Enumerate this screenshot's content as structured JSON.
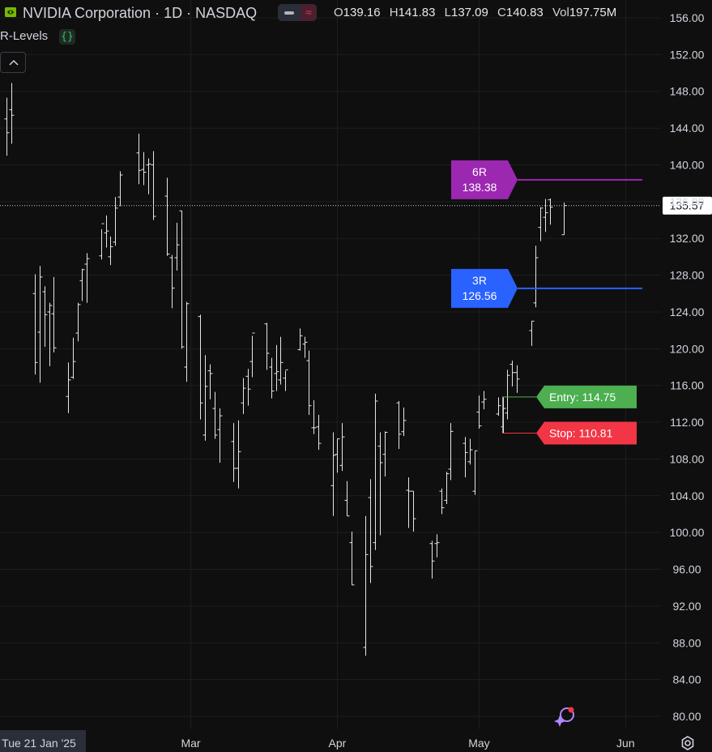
{
  "header": {
    "title": "NVIDIA Corporation · 1D · NASDAQ",
    "ohlc": [
      {
        "key": "O",
        "value": "139.16"
      },
      {
        "key": "H",
        "value": "141.83"
      },
      {
        "key": "L",
        "value": "137.09"
      },
      {
        "key": "C",
        "value": "140.83"
      },
      {
        "key": "Vol",
        "value": "197.75M"
      }
    ],
    "indicator_name": "R-Levels",
    "indicator_icon": "code-braces-icon"
  },
  "colors": {
    "background": "#0f0f0f",
    "grid": "#1e1e1e",
    "bar": "#e6e6e6",
    "six_r": "#9c27b0",
    "three_r": "#2962ff",
    "entry": "#4caf50",
    "stop": "#f23645",
    "text": "#d1d4dc"
  },
  "chart_data": {
    "type": "ohlc",
    "title": "NVIDIA Corporation · 1D · NASDAQ",
    "ylim": [
      80,
      156
    ],
    "y_ticks": [
      "156.00",
      "152.00",
      "148.00",
      "144.00",
      "140.00",
      "136.00",
      "132.00",
      "128.00",
      "124.00",
      "120.00",
      "116.00",
      "112.00",
      "108.00",
      "104.00",
      "100.00",
      "96.00",
      "92.00",
      "88.00",
      "84.00",
      "80.00"
    ],
    "x_ticks": [
      {
        "label": "Tue 21 Jan '25",
        "date": "2025-01-21",
        "highlight": true
      },
      {
        "label": "Mar",
        "date": "2025-03-01"
      },
      {
        "label": "Apr",
        "date": "2025-04-01"
      },
      {
        "label": "May",
        "date": "2025-05-01"
      },
      {
        "label": "Jun",
        "date": "2025-06-01"
      }
    ],
    "xlim": [
      "2025-01-21",
      "2025-06-03"
    ],
    "last_price": "135.57",
    "levels": [
      {
        "name": "6R",
        "value": "138.38",
        "color": "#9c27b0"
      },
      {
        "name": "3R",
        "value": "126.56",
        "color": "#2962ff"
      }
    ],
    "entry": {
      "label": "Entry: 114.75",
      "value": 114.75,
      "color": "#4caf50"
    },
    "stop": {
      "label": "Stop: 110.81",
      "value": 110.81,
      "color": "#f23645"
    },
    "bars": [
      {
        "d": "2025-01-21",
        "o": 145.0,
        "h": 147.3,
        "l": 141.0,
        "c": 143.5
      },
      {
        "d": "2025-01-22",
        "o": 146.0,
        "h": 148.9,
        "l": 142.3,
        "c": 145.4
      },
      {
        "d": "2025-01-27",
        "o": 126.0,
        "h": 128.1,
        "l": 117.2,
        "c": 118.5
      },
      {
        "d": "2025-01-28",
        "o": 121.8,
        "h": 129.0,
        "l": 116.3,
        "c": 127.8
      },
      {
        "d": "2025-01-29",
        "o": 126.2,
        "h": 126.8,
        "l": 120.2,
        "c": 123.7
      },
      {
        "d": "2025-01-30",
        "o": 124.0,
        "h": 125.0,
        "l": 118.1,
        "c": 124.7
      },
      {
        "d": "2025-01-31",
        "o": 123.8,
        "h": 127.8,
        "l": 119.6,
        "c": 120.1
      },
      {
        "d": "2025-02-03",
        "o": 114.8,
        "h": 118.5,
        "l": 113.0,
        "c": 116.6
      },
      {
        "d": "2025-02-04",
        "o": 116.9,
        "h": 121.2,
        "l": 116.7,
        "c": 118.6
      },
      {
        "d": "2025-02-05",
        "o": 121.7,
        "h": 125.0,
        "l": 120.8,
        "c": 124.8
      },
      {
        "d": "2025-02-06",
        "o": 127.4,
        "h": 128.7,
        "l": 125.2,
        "c": 128.6
      },
      {
        "d": "2025-02-07",
        "o": 129.2,
        "h": 130.4,
        "l": 125.0,
        "c": 129.8
      },
      {
        "d": "2025-02-10",
        "o": 130.1,
        "h": 133.0,
        "l": 129.7,
        "c": 133.6
      },
      {
        "d": "2025-02-11",
        "o": 132.6,
        "h": 134.5,
        "l": 131.0,
        "c": 132.8
      },
      {
        "d": "2025-02-12",
        "o": 130.0,
        "h": 132.2,
        "l": 129.1,
        "c": 131.1
      },
      {
        "d": "2025-02-13",
        "o": 131.6,
        "h": 136.5,
        "l": 131.2,
        "c": 135.3
      },
      {
        "d": "2025-02-14",
        "o": 136.5,
        "h": 139.3,
        "l": 135.5,
        "c": 138.9
      },
      {
        "d": "2025-02-18",
        "o": 141.3,
        "h": 143.4,
        "l": 137.9,
        "c": 139.4
      },
      {
        "d": "2025-02-19",
        "o": 139.5,
        "h": 141.4,
        "l": 137.8,
        "c": 139.2
      },
      {
        "d": "2025-02-20",
        "o": 140.0,
        "h": 140.7,
        "l": 136.8,
        "c": 140.1
      },
      {
        "d": "2025-02-21",
        "o": 140.0,
        "h": 141.5,
        "l": 134.0,
        "c": 134.4
      },
      {
        "d": "2025-02-24",
        "o": 136.6,
        "h": 138.6,
        "l": 130.1,
        "c": 130.3
      },
      {
        "d": "2025-02-25",
        "o": 129.9,
        "h": 130.2,
        "l": 124.4,
        "c": 126.6
      },
      {
        "d": "2025-02-26",
        "o": 129.9,
        "h": 133.7,
        "l": 128.5,
        "c": 131.3
      },
      {
        "d": "2025-02-27",
        "o": 135.0,
        "h": 135.0,
        "l": 120.0,
        "c": 120.2
      },
      {
        "d": "2025-02-28",
        "o": 118.0,
        "h": 125.1,
        "l": 116.4,
        "c": 124.9
      },
      {
        "d": "2025-03-03",
        "o": 123.5,
        "h": 123.7,
        "l": 112.3,
        "c": 114.1
      },
      {
        "d": "2025-03-04",
        "o": 110.6,
        "h": 119.3,
        "l": 110.0,
        "c": 115.9
      },
      {
        "d": "2025-03-05",
        "o": 117.6,
        "h": 118.3,
        "l": 114.5,
        "c": 117.3
      },
      {
        "d": "2025-03-06",
        "o": 113.5,
        "h": 115.3,
        "l": 110.2,
        "c": 110.6
      },
      {
        "d": "2025-03-07",
        "o": 111.2,
        "h": 113.5,
        "l": 107.6,
        "c": 112.7
      },
      {
        "d": "2025-03-10",
        "o": 109.9,
        "h": 111.9,
        "l": 105.5,
        "c": 106.98
      },
      {
        "d": "2025-03-11",
        "o": 106.99,
        "h": 112.2,
        "l": 104.8,
        "c": 108.8
      },
      {
        "d": "2025-03-12",
        "o": 114.1,
        "h": 116.8,
        "l": 112.9,
        "c": 115.7
      },
      {
        "d": "2025-03-13",
        "o": 117.0,
        "h": 117.8,
        "l": 113.8,
        "c": 115.6
      },
      {
        "d": "2025-03-14",
        "o": 118.6,
        "h": 121.4,
        "l": 116.9,
        "c": 121.7
      },
      {
        "d": "2025-03-17",
        "o": 122.7,
        "h": 122.8,
        "l": 117.7,
        "c": 119.5
      },
      {
        "d": "2025-03-18",
        "o": 118.0,
        "h": 119.0,
        "l": 114.6,
        "c": 115.4
      },
      {
        "d": "2025-03-19",
        "o": 117.3,
        "h": 120.4,
        "l": 115.4,
        "c": 117.5
      },
      {
        "d": "2025-03-20",
        "o": 116.6,
        "h": 121.3,
        "l": 116.1,
        "c": 118.5
      },
      {
        "d": "2025-03-21",
        "o": 116.8,
        "h": 117.6,
        "l": 115.4,
        "c": 117.7
      },
      {
        "d": "2025-03-24",
        "o": 119.9,
        "h": 122.2,
        "l": 119.8,
        "c": 121.4
      },
      {
        "d": "2025-03-25",
        "o": 120.5,
        "h": 121.3,
        "l": 119.0,
        "c": 120.7
      },
      {
        "d": "2025-03-26",
        "o": 118.7,
        "h": 119.8,
        "l": 112.8,
        "c": 113.8
      },
      {
        "d": "2025-03-27",
        "o": 111.4,
        "h": 114.4,
        "l": 110.7,
        "c": 111.4
      },
      {
        "d": "2025-03-28",
        "o": 111.5,
        "h": 112.8,
        "l": 109.0,
        "c": 109.7
      },
      {
        "d": "2025-03-31",
        "o": 105.1,
        "h": 110.9,
        "l": 101.8,
        "c": 108.4
      },
      {
        "d": "2025-04-01",
        "o": 108.5,
        "h": 110.2,
        "l": 106.5,
        "c": 110.2
      },
      {
        "d": "2025-04-02",
        "o": 107.3,
        "h": 111.9,
        "l": 106.7,
        "c": 110.4
      },
      {
        "d": "2025-04-03",
        "o": 103.5,
        "h": 105.6,
        "l": 101.8,
        "c": 101.8
      },
      {
        "d": "2025-04-04",
        "o": 98.9,
        "h": 100.1,
        "l": 94.3,
        "c": 94.3
      },
      {
        "d": "2025-04-07",
        "o": 87.5,
        "h": 101.8,
        "l": 86.6,
        "c": 97.6
      },
      {
        "d": "2025-04-08",
        "o": 103.8,
        "h": 105.8,
        "l": 94.5,
        "c": 96.3
      },
      {
        "d": "2025-04-09",
        "o": 98.9,
        "h": 115.1,
        "l": 98.1,
        "c": 114.3
      },
      {
        "d": "2025-04-10",
        "o": 109.4,
        "h": 110.9,
        "l": 99.7,
        "c": 107.6
      },
      {
        "d": "2025-04-11",
        "o": 108.5,
        "h": 111.0,
        "l": 106.1,
        "c": 110.9
      },
      {
        "d": "2025-04-14",
        "o": 114.1,
        "h": 114.3,
        "l": 109.1,
        "c": 110.7
      },
      {
        "d": "2025-04-15",
        "o": 110.97,
        "h": 113.6,
        "l": 110.5,
        "c": 112.2
      },
      {
        "d": "2025-04-16",
        "o": 104.6,
        "h": 106.0,
        "l": 100.5,
        "c": 104.5
      },
      {
        "d": "2025-04-17",
        "o": 104.5,
        "h": 104.5,
        "l": 100.1,
        "c": 101.5
      },
      {
        "d": "2025-04-21",
        "o": 98.8,
        "h": 99.1,
        "l": 95.0,
        "c": 96.9
      },
      {
        "d": "2025-04-22",
        "o": 98.8,
        "h": 99.8,
        "l": 97.3,
        "c": 98.9
      },
      {
        "d": "2025-04-23",
        "o": 104.5,
        "h": 104.8,
        "l": 102.0,
        "c": 102.7
      },
      {
        "d": "2025-04-24",
        "o": 103.5,
        "h": 106.6,
        "l": 103.1,
        "c": 106.4
      },
      {
        "d": "2025-04-25",
        "o": 106.9,
        "h": 111.9,
        "l": 105.7,
        "c": 111.0
      },
      {
        "d": "2025-04-28",
        "o": 109.7,
        "h": 110.4,
        "l": 106.0,
        "c": 108.7
      },
      {
        "d": "2025-04-29",
        "o": 107.7,
        "h": 110.2,
        "l": 107.4,
        "c": 109.0
      },
      {
        "d": "2025-04-30",
        "o": 104.5,
        "h": 108.9,
        "l": 104.1,
        "c": 108.9
      },
      {
        "d": "2025-05-01",
        "o": 113.1,
        "h": 114.9,
        "l": 111.3,
        "c": 111.6
      },
      {
        "d": "2025-05-02",
        "o": 114.2,
        "h": 115.4,
        "l": 113.4,
        "c": 114.5
      },
      {
        "d": "2025-05-05",
        "o": 112.9,
        "h": 114.7,
        "l": 112.7,
        "c": 113.8
      },
      {
        "d": "2025-05-06",
        "o": 111.5,
        "h": 114.7,
        "l": 110.8,
        "c": 113.5
      },
      {
        "d": "2025-05-07",
        "o": 113.0,
        "h": 117.7,
        "l": 112.3,
        "c": 117.1
      },
      {
        "d": "2025-05-08",
        "o": 118.3,
        "h": 118.7,
        "l": 115.9,
        "c": 117.4
      },
      {
        "d": "2025-05-09",
        "o": 117.4,
        "h": 118.2,
        "l": 115.2,
        "c": 116.7
      },
      {
        "d": "2025-05-12",
        "o": 121.97,
        "h": 123.0,
        "l": 120.3,
        "c": 123.0
      },
      {
        "d": "2025-05-13",
        "o": 124.98,
        "h": 131.2,
        "l": 124.5,
        "c": 129.9
      },
      {
        "d": "2025-05-14",
        "o": 133.2,
        "h": 135.4,
        "l": 131.7,
        "c": 135.3
      },
      {
        "d": "2025-05-15",
        "o": 134.3,
        "h": 136.3,
        "l": 132.7,
        "c": 134.8
      },
      {
        "d": "2025-05-16",
        "o": 136.2,
        "h": 136.35,
        "l": 133.5,
        "c": 135.4
      },
      {
        "d": "2025-05-19",
        "o": 132.4,
        "h": 135.9,
        "l": 132.4,
        "c": 135.57
      }
    ]
  }
}
